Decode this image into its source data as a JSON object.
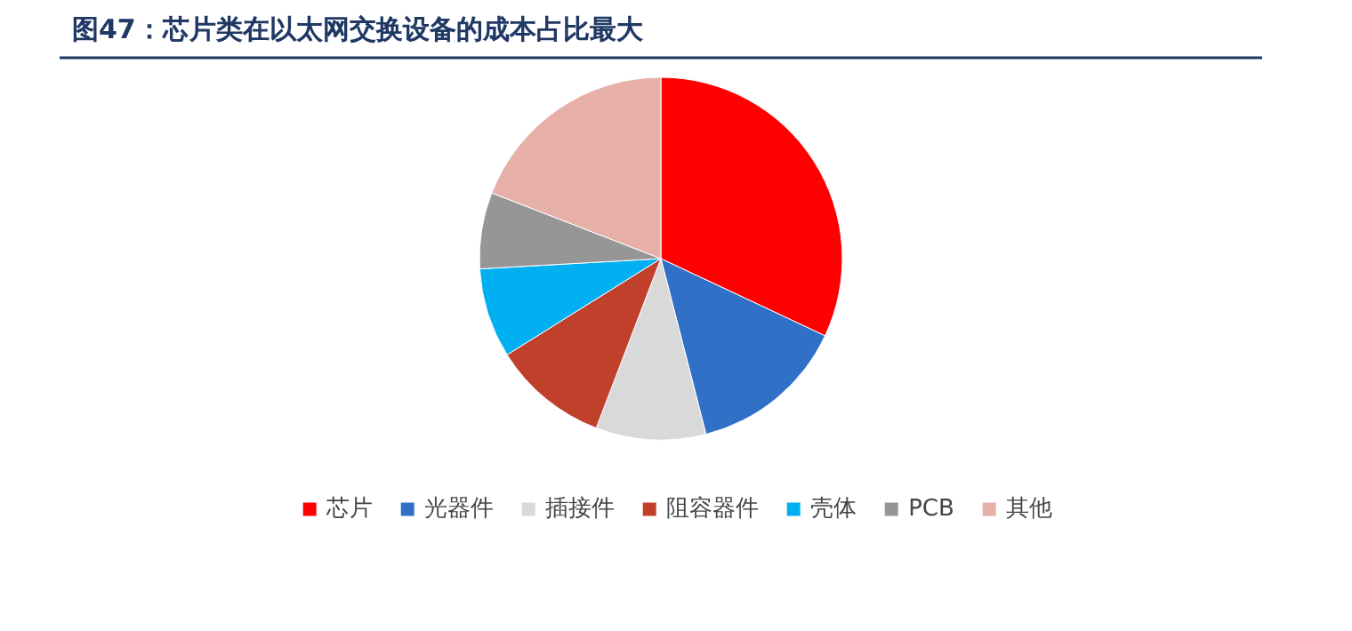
{
  "chart_data": {
    "type": "pie",
    "title": "图47：芯片类在以太网交换设备的成本占比最大",
    "categories": [
      "芯片",
      "光器件",
      "插接件",
      "阻容器件",
      "壳体",
      "PCB",
      "其他"
    ],
    "values": [
      32.0,
      14.0,
      9.8,
      10.3,
      8.0,
      6.8,
      19.1
    ],
    "colors": [
      "#ff0000",
      "#3070c6",
      "#d9d9d9",
      "#c0402c",
      "#00b0f0",
      "#969696",
      "#e6b0a8"
    ],
    "legend": "bottom"
  }
}
